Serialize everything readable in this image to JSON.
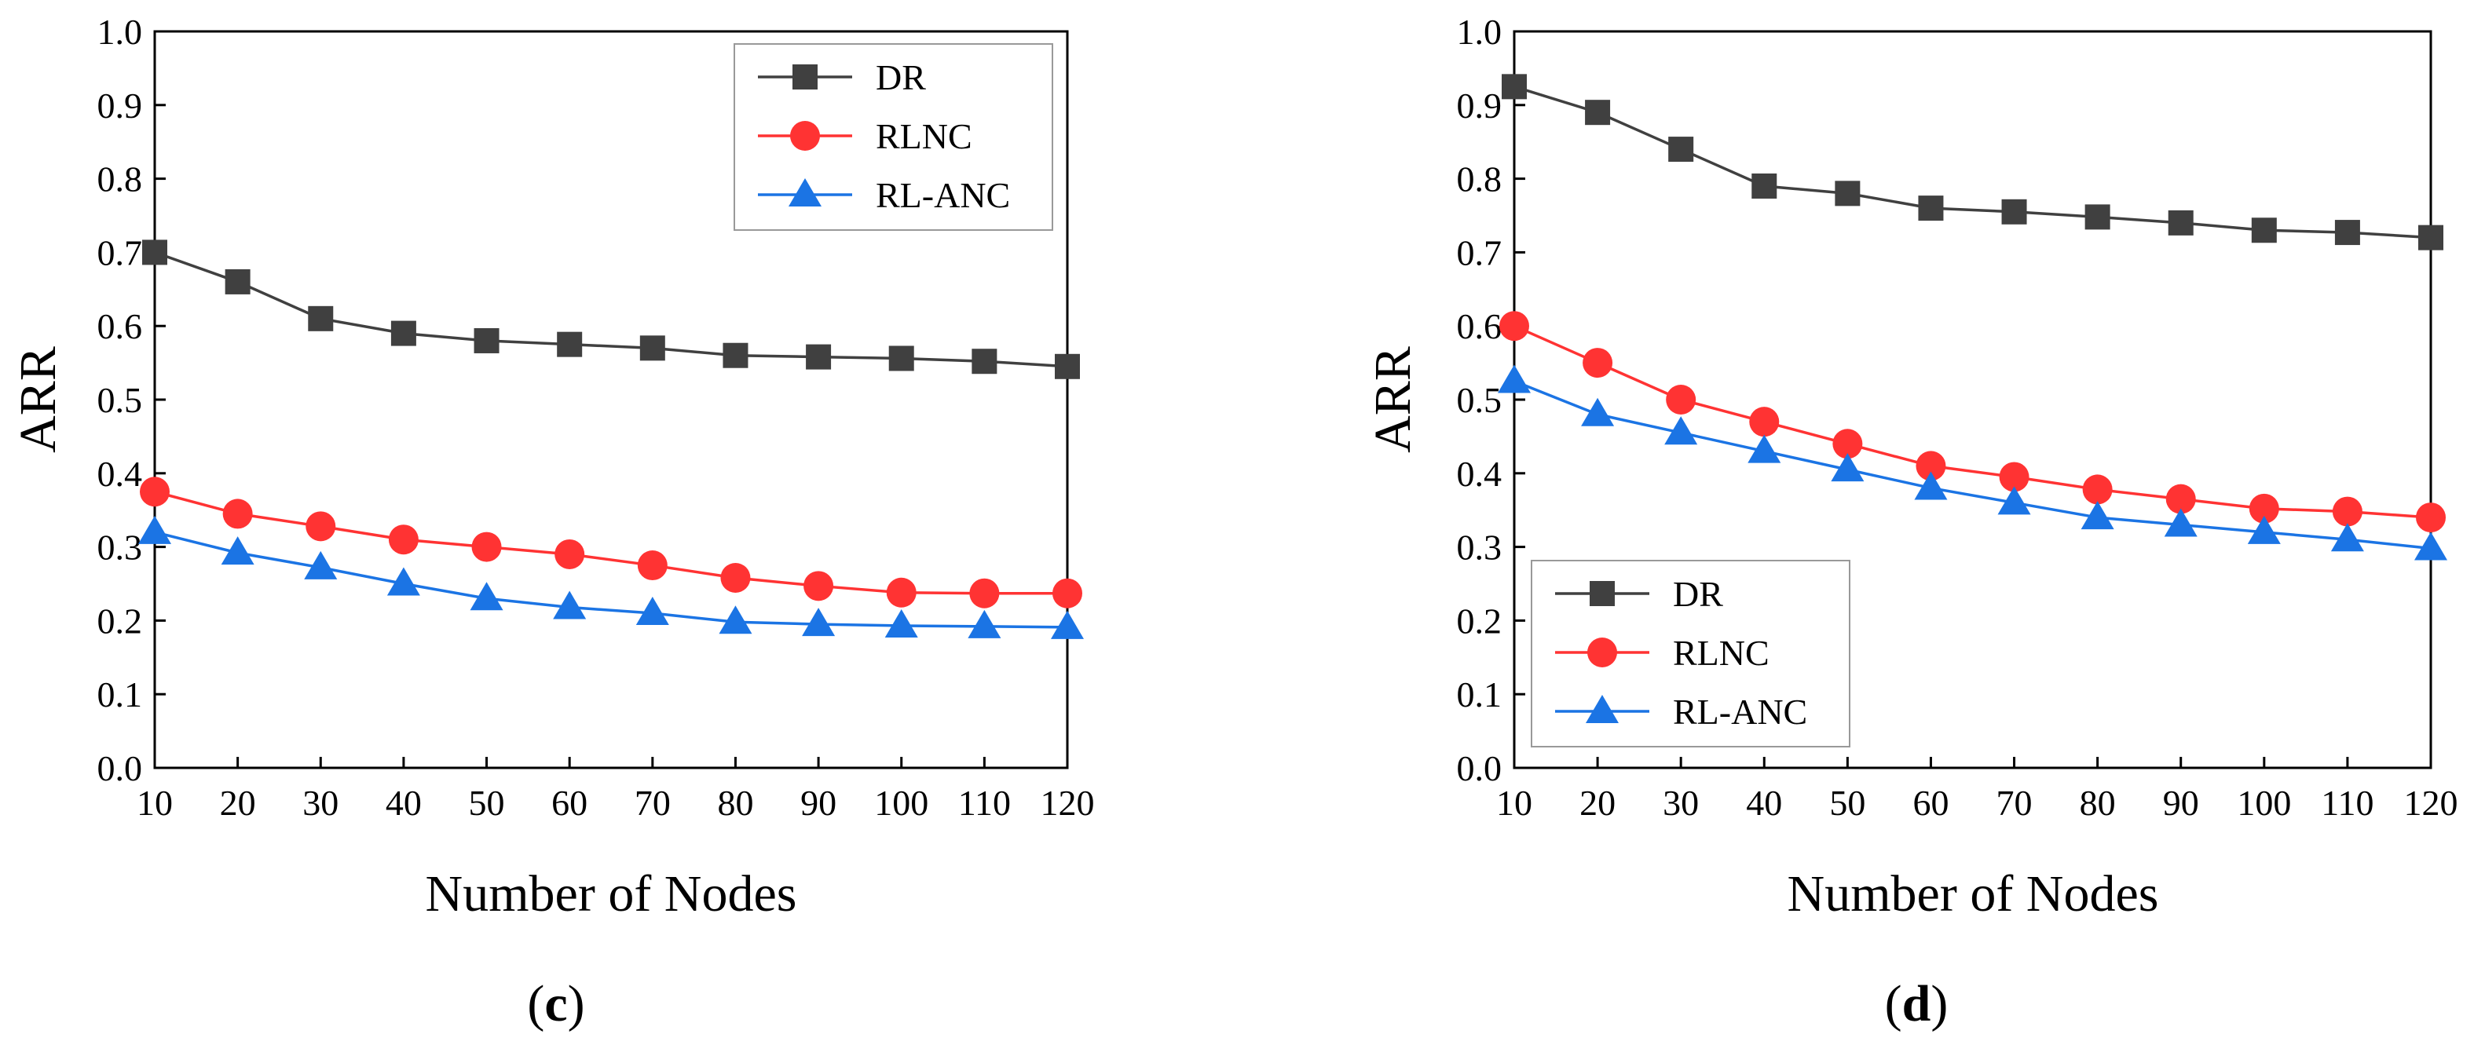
{
  "chart_data": [
    {
      "type": "line",
      "panel": "c",
      "caption_open": "(",
      "caption_letter": "c",
      "caption_close": ")",
      "xlabel": "Number of Nodes",
      "ylabel": "ARR",
      "x": [
        10,
        20,
        30,
        40,
        50,
        60,
        70,
        80,
        90,
        100,
        110,
        120
      ],
      "x_ticks": [
        "10",
        "20",
        "30",
        "40",
        "50",
        "60",
        "70",
        "80",
        "90",
        "100",
        "110",
        "120"
      ],
      "ylim": [
        0,
        1
      ],
      "y_ticks": [
        "0.0",
        "0.1",
        "0.2",
        "0.3",
        "0.4",
        "0.5",
        "0.6",
        "0.7",
        "0.8",
        "0.9",
        "1.0"
      ],
      "legend_position": "top-right",
      "series": [
        {
          "name": "DR",
          "marker": "square",
          "color": "#404040",
          "values": [
            0.7,
            0.66,
            0.61,
            0.59,
            0.58,
            0.575,
            0.57,
            0.56,
            0.558,
            0.556,
            0.552,
            0.545
          ]
        },
        {
          "name": "RLNC",
          "marker": "circle",
          "color": "#ff3333",
          "values": [
            0.375,
            0.345,
            0.328,
            0.31,
            0.3,
            0.29,
            0.275,
            0.258,
            0.247,
            0.238,
            0.237,
            0.237
          ]
        },
        {
          "name": "RL-ANC",
          "marker": "triangle",
          "color": "#1b74e4",
          "values": [
            0.32,
            0.292,
            0.272,
            0.25,
            0.23,
            0.218,
            0.21,
            0.198,
            0.195,
            0.193,
            0.192,
            0.191
          ]
        }
      ]
    },
    {
      "type": "line",
      "panel": "d",
      "caption_open": "(",
      "caption_letter": "d",
      "caption_close": ")",
      "xlabel": "Number of Nodes",
      "ylabel": "ARR",
      "x": [
        10,
        20,
        30,
        40,
        50,
        60,
        70,
        80,
        90,
        100,
        110,
        120
      ],
      "x_ticks": [
        "10",
        "20",
        "30",
        "40",
        "50",
        "60",
        "70",
        "80",
        "90",
        "100",
        "110",
        "120"
      ],
      "ylim": [
        0,
        1
      ],
      "y_ticks": [
        "0.0",
        "0.1",
        "0.2",
        "0.3",
        "0.4",
        "0.5",
        "0.6",
        "0.7",
        "0.8",
        "0.9",
        "1.0"
      ],
      "legend_position": "bottom-left",
      "series": [
        {
          "name": "DR",
          "marker": "square",
          "color": "#404040",
          "values": [
            0.925,
            0.89,
            0.84,
            0.79,
            0.78,
            0.76,
            0.755,
            0.748,
            0.74,
            0.73,
            0.727,
            0.72
          ]
        },
        {
          "name": "RLNC",
          "marker": "circle",
          "color": "#ff3333",
          "values": [
            0.6,
            0.55,
            0.5,
            0.47,
            0.44,
            0.41,
            0.395,
            0.378,
            0.365,
            0.352,
            0.348,
            0.34
          ]
        },
        {
          "name": "RL-ANC",
          "marker": "triangle",
          "color": "#1b74e4",
          "values": [
            0.525,
            0.48,
            0.455,
            0.43,
            0.405,
            0.38,
            0.36,
            0.34,
            0.33,
            0.32,
            0.31,
            0.298
          ]
        }
      ]
    }
  ]
}
